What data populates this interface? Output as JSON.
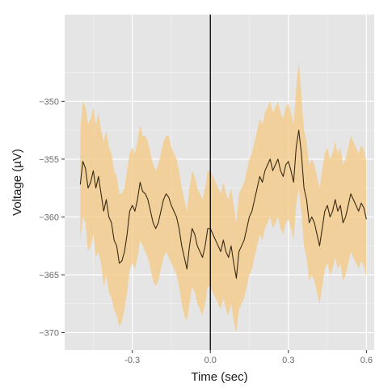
{
  "chart_data": {
    "type": "line",
    "title": "",
    "xlabel": "Time (sec)",
    "ylabel": "Voltage (µV)",
    "xlim": [
      -0.56,
      0.63
    ],
    "ylim": [
      -371.5,
      -342.5
    ],
    "xticks": [
      -0.3,
      0.0,
      0.3,
      0.6
    ],
    "xtick_labels": [
      "-0.3",
      "0.0",
      "0.3",
      "0.6"
    ],
    "yticks": [
      -350,
      -355,
      -360,
      -365,
      -370
    ],
    "ytick_labels": [
      "−350",
      "−355",
      "−360",
      "−365",
      "−370"
    ],
    "grid": true,
    "legend": "none",
    "vline_x": 0.0,
    "colors": {
      "panel": "#e5e5e5",
      "grid": "#ffffff",
      "ribbon": "#f5c77e",
      "line": "#3a2a12",
      "vline": "#000000"
    },
    "series": [
      {
        "type": "line",
        "x": [
          -0.5,
          -0.49,
          -0.48,
          -0.47,
          -0.46,
          -0.45,
          -0.44,
          -0.43,
          -0.42,
          -0.41,
          -0.4,
          -0.39,
          -0.38,
          -0.37,
          -0.36,
          -0.35,
          -0.34,
          -0.33,
          -0.32,
          -0.31,
          -0.3,
          -0.29,
          -0.28,
          -0.27,
          -0.26,
          -0.25,
          -0.24,
          -0.23,
          -0.22,
          -0.21,
          -0.2,
          -0.19,
          -0.18,
          -0.17,
          -0.16,
          -0.15,
          -0.14,
          -0.13,
          -0.12,
          -0.11,
          -0.1,
          -0.09,
          -0.08,
          -0.07,
          -0.06,
          -0.05,
          -0.04,
          -0.03,
          -0.02,
          -0.01,
          0.0,
          0.01,
          0.02,
          0.03,
          0.04,
          0.05,
          0.06,
          0.07,
          0.08,
          0.09,
          0.1,
          0.11,
          0.12,
          0.13,
          0.14,
          0.15,
          0.16,
          0.17,
          0.18,
          0.19,
          0.2,
          0.21,
          0.22,
          0.23,
          0.24,
          0.25,
          0.26,
          0.27,
          0.28,
          0.29,
          0.3,
          0.31,
          0.32,
          0.33,
          0.34,
          0.35,
          0.36,
          0.37,
          0.38,
          0.39,
          0.4,
          0.41,
          0.42,
          0.43,
          0.44,
          0.45,
          0.46,
          0.47,
          0.48,
          0.49,
          0.5,
          0.51,
          0.52,
          0.53,
          0.54,
          0.55,
          0.56,
          0.57,
          0.58,
          0.59,
          0.6
        ],
        "y": [
          -357.2,
          -355.2,
          -355.8,
          -357.5,
          -357.0,
          -356.0,
          -357.5,
          -356.5,
          -358.0,
          -359.5,
          -358.5,
          -360.0,
          -360.5,
          -362.0,
          -362.5,
          -364.0,
          -363.8,
          -363.0,
          -361.5,
          -359.5,
          -359.0,
          -359.5,
          -358.5,
          -357.0,
          -357.8,
          -358.0,
          -358.5,
          -359.5,
          -360.5,
          -361.0,
          -360.5,
          -359.5,
          -358.5,
          -358.0,
          -358.3,
          -359.0,
          -359.5,
          -360.0,
          -361.0,
          -362.5,
          -363.5,
          -364.5,
          -362.5,
          -361.0,
          -361.5,
          -362.5,
          -363.0,
          -363.5,
          -362.5,
          -361.0,
          -361.0,
          -361.5,
          -362.0,
          -362.5,
          -363.0,
          -362.0,
          -363.0,
          -363.5,
          -362.5,
          -364.0,
          -365.3,
          -363.0,
          -362.5,
          -362.0,
          -361.0,
          -360.0,
          -359.5,
          -358.5,
          -357.5,
          -356.5,
          -357.0,
          -356.0,
          -355.5,
          -355.0,
          -356.0,
          -355.5,
          -355.0,
          -356.0,
          -356.5,
          -355.5,
          -355.2,
          -356.0,
          -357.0,
          -354.0,
          -352.5,
          -354.5,
          -357.5,
          -358.5,
          -360.5,
          -360.0,
          -360.5,
          -361.5,
          -362.5,
          -361.0,
          -359.5,
          -359.0,
          -360.0,
          -359.5,
          -358.5,
          -359.5,
          -359.0,
          -360.5,
          -360.0,
          -359.0,
          -358.0,
          -358.5,
          -359.0,
          -359.5,
          -358.8,
          -359.2,
          -360.2
        ]
      },
      {
        "type": "ribbon",
        "x": [
          -0.5,
          -0.49,
          -0.48,
          -0.47,
          -0.46,
          -0.45,
          -0.44,
          -0.43,
          -0.42,
          -0.41,
          -0.4,
          -0.39,
          -0.38,
          -0.37,
          -0.36,
          -0.35,
          -0.34,
          -0.33,
          -0.32,
          -0.31,
          -0.3,
          -0.29,
          -0.28,
          -0.27,
          -0.26,
          -0.25,
          -0.24,
          -0.23,
          -0.22,
          -0.21,
          -0.2,
          -0.19,
          -0.18,
          -0.17,
          -0.16,
          -0.15,
          -0.14,
          -0.13,
          -0.12,
          -0.11,
          -0.1,
          -0.09,
          -0.08,
          -0.07,
          -0.06,
          -0.05,
          -0.04,
          -0.03,
          -0.02,
          -0.01,
          0.0,
          0.01,
          0.02,
          0.03,
          0.04,
          0.05,
          0.06,
          0.07,
          0.08,
          0.09,
          0.1,
          0.11,
          0.12,
          0.13,
          0.14,
          0.15,
          0.16,
          0.17,
          0.18,
          0.19,
          0.2,
          0.21,
          0.22,
          0.23,
          0.24,
          0.25,
          0.26,
          0.27,
          0.28,
          0.29,
          0.3,
          0.31,
          0.32,
          0.33,
          0.34,
          0.35,
          0.36,
          0.37,
          0.38,
          0.39,
          0.4,
          0.41,
          0.42,
          0.43,
          0.44,
          0.45,
          0.46,
          0.47,
          0.48,
          0.49,
          0.5,
          0.51,
          0.52,
          0.53,
          0.54,
          0.55,
          0.56,
          0.57,
          0.58,
          0.59,
          0.6
        ],
        "y_low": [
          -362.0,
          -360.0,
          -360.5,
          -363.0,
          -362.5,
          -361.5,
          -363.5,
          -363.0,
          -364.0,
          -366.0,
          -365.0,
          -366.5,
          -367.0,
          -368.0,
          -368.5,
          -369.5,
          -369.0,
          -368.0,
          -366.5,
          -364.5,
          -364.0,
          -364.5,
          -363.5,
          -362.0,
          -362.5,
          -363.0,
          -363.5,
          -364.5,
          -365.5,
          -366.0,
          -365.5,
          -364.5,
          -363.5,
          -363.0,
          -363.5,
          -364.0,
          -364.5,
          -365.0,
          -366.0,
          -367.5,
          -368.5,
          -369.0,
          -367.5,
          -366.0,
          -366.5,
          -367.5,
          -368.0,
          -368.5,
          -367.5,
          -366.0,
          -366.0,
          -366.5,
          -367.0,
          -367.5,
          -368.0,
          -367.0,
          -368.0,
          -368.5,
          -367.5,
          -369.0,
          -370.0,
          -368.0,
          -367.5,
          -367.0,
          -366.0,
          -365.0,
          -364.5,
          -363.5,
          -362.5,
          -361.5,
          -362.0,
          -361.0,
          -360.5,
          -360.0,
          -361.0,
          -360.5,
          -360.0,
          -361.0,
          -361.5,
          -360.5,
          -360.2,
          -361.0,
          -362.0,
          -359.0,
          -357.5,
          -359.5,
          -362.5,
          -363.5,
          -365.5,
          -365.0,
          -365.5,
          -366.5,
          -367.5,
          -366.0,
          -364.5,
          -364.0,
          -365.0,
          -364.5,
          -363.5,
          -364.5,
          -364.0,
          -365.5,
          -365.0,
          -364.0,
          -363.0,
          -363.5,
          -364.0,
          -364.5,
          -363.8,
          -364.2,
          -365.2
        ],
        "y_high": [
          -352.5,
          -350.0,
          -350.5,
          -352.0,
          -351.5,
          -350.5,
          -352.0,
          -351.0,
          -352.5,
          -353.5,
          -352.5,
          -354.0,
          -354.5,
          -356.0,
          -356.5,
          -358.0,
          -358.0,
          -357.5,
          -356.0,
          -354.5,
          -354.0,
          -354.5,
          -353.5,
          -352.0,
          -353.0,
          -353.0,
          -353.5,
          -354.5,
          -355.5,
          -356.0,
          -355.5,
          -354.5,
          -353.5,
          -353.0,
          -353.0,
          -354.0,
          -354.5,
          -355.0,
          -356.0,
          -357.5,
          -358.5,
          -359.5,
          -357.5,
          -356.0,
          -356.5,
          -357.5,
          -358.0,
          -358.5,
          -357.5,
          -356.0,
          -356.0,
          -356.5,
          -357.0,
          -357.5,
          -358.0,
          -357.0,
          -358.0,
          -358.5,
          -357.5,
          -359.0,
          -360.5,
          -358.0,
          -357.5,
          -357.0,
          -356.0,
          -355.0,
          -354.5,
          -353.5,
          -352.5,
          -351.5,
          -352.0,
          -351.0,
          -350.5,
          -350.0,
          -351.0,
          -350.5,
          -350.0,
          -351.0,
          -351.5,
          -350.5,
          -350.2,
          -351.0,
          -352.0,
          -349.0,
          -346.5,
          -349.5,
          -352.5,
          -353.5,
          -355.5,
          -355.0,
          -355.5,
          -356.5,
          -357.5,
          -356.0,
          -354.5,
          -354.0,
          -355.0,
          -354.5,
          -353.5,
          -354.5,
          -354.0,
          -355.5,
          -355.0,
          -354.0,
          -353.0,
          -353.5,
          -354.0,
          -354.5,
          -353.8,
          -354.2,
          -355.2
        ]
      }
    ]
  }
}
